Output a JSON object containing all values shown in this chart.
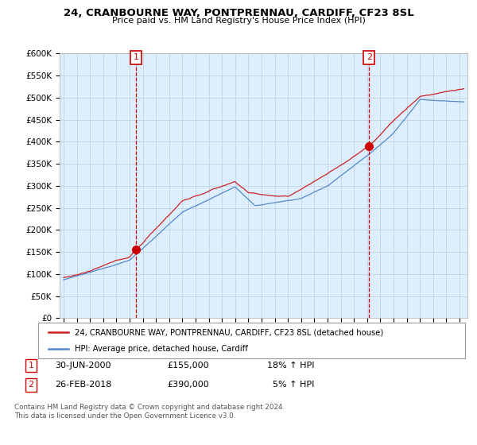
{
  "title": "24, CRANBOURNE WAY, PONTPRENNAU, CARDIFF, CF23 8SL",
  "subtitle": "Price paid vs. HM Land Registry's House Price Index (HPI)",
  "ylim": [
    0,
    600000
  ],
  "yticks": [
    0,
    50000,
    100000,
    150000,
    200000,
    250000,
    300000,
    350000,
    400000,
    450000,
    500000,
    550000,
    600000
  ],
  "ytick_labels": [
    "£0",
    "£50K",
    "£100K",
    "£150K",
    "£200K",
    "£250K",
    "£300K",
    "£350K",
    "£400K",
    "£450K",
    "£500K",
    "£550K",
    "£600K"
  ],
  "hpi_color": "#5588cc",
  "price_color": "#cc2222",
  "annotation_box_color": "#cc0000",
  "purchase1_date_num": 2000.5,
  "purchase1_price": 155000,
  "purchase2_date_num": 2018.15,
  "purchase2_price": 390000,
  "legend_label_red": "24, CRANBOURNE WAY, PONTPRENNAU, CARDIFF, CF23 8SL (detached house)",
  "legend_label_blue": "HPI: Average price, detached house, Cardiff",
  "footnote": "Contains HM Land Registry data © Crown copyright and database right 2024.\nThis data is licensed under the Open Government Licence v3.0.",
  "background_color": "#ffffff",
  "plot_bg_color": "#ddeeff",
  "grid_color": "#bbccdd"
}
